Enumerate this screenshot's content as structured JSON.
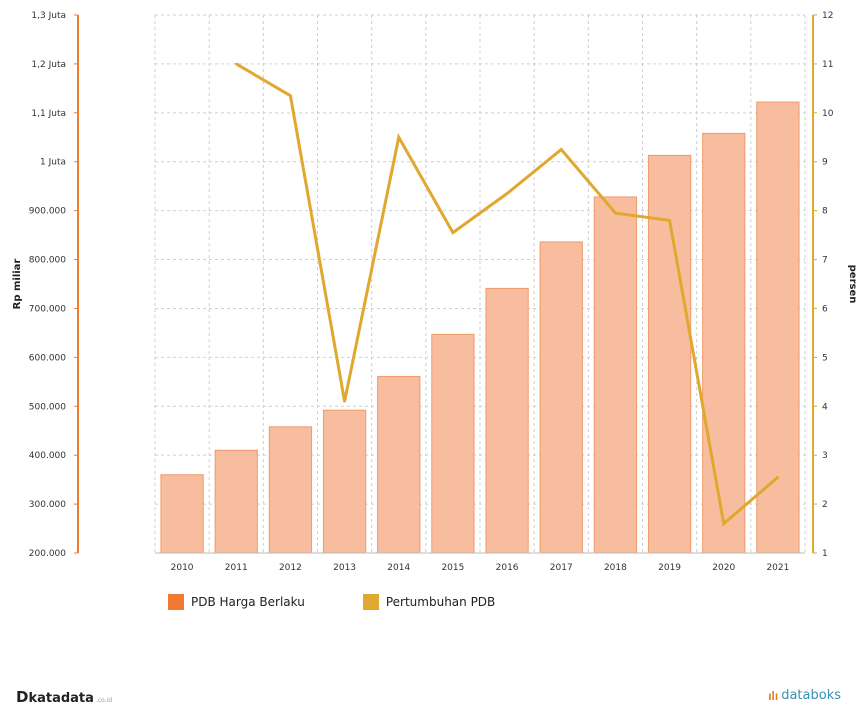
{
  "chart_data": {
    "type": "bar+line",
    "categories": [
      "2010",
      "2011",
      "2012",
      "2013",
      "2014",
      "2015",
      "2016",
      "2017",
      "2018",
      "2019",
      "2020",
      "2021"
    ],
    "series": [
      {
        "name": "PDB Harga Berlaku",
        "type": "bar",
        "axis": "left",
        "color": "#f8bd9e",
        "values": [
          360000,
          410000,
          458000,
          492000,
          561000,
          647000,
          741000,
          836000,
          928000,
          1013000,
          1058000,
          1122000
        ]
      },
      {
        "name": "Pertumbuhan PDB",
        "type": "line",
        "axis": "right",
        "color": "#e0a82e",
        "values": [
          null,
          11.0,
          10.35,
          4.1,
          9.5,
          7.55,
          8.35,
          9.25,
          7.95,
          7.8,
          1.6,
          2.55
        ]
      }
    ],
    "y_left": {
      "label": "Rp miliar",
      "range": [
        200000,
        1300000
      ],
      "ticks": [
        200000,
        300000,
        400000,
        500000,
        600000,
        700000,
        800000,
        900000,
        1000000,
        1100000,
        1200000,
        1300000
      ],
      "tick_labels": [
        "200.000",
        "300.000",
        "400.000",
        "500.000",
        "600.000",
        "700.000",
        "800.000",
        "900.000",
        "1 Juta",
        "1,1 Juta",
        "1,2 Juta",
        "1,3 Juta"
      ]
    },
    "y_right": {
      "label": "persen",
      "range": [
        1,
        12
      ],
      "ticks": [
        1,
        2,
        3,
        4,
        5,
        6,
        7,
        8,
        9,
        10,
        11,
        12
      ],
      "tick_labels": [
        "1",
        "2",
        "3",
        "4",
        "5",
        "6",
        "7",
        "8",
        "9",
        "10",
        "11",
        "12"
      ]
    },
    "grid": true,
    "legend_position": "bottom-left"
  },
  "legend": [
    {
      "label": "PDB Harga Berlaku",
      "color": "#ef7a30"
    },
    {
      "label": "Pertumbuhan PDB",
      "color": "#e0a82e"
    }
  ],
  "footer": {
    "brand_left_d": "D",
    "brand_left_name": "katadata",
    "brand_left_suffix": ".co.id",
    "brand_right_icon": "databoks-icon",
    "brand_right": "databoks"
  },
  "colors": {
    "left_axis": "#ef7a30",
    "right_axis": "#e0a82e",
    "bar_fill": "#f8bd9e",
    "bar_stroke": "#ef9a6a"
  }
}
